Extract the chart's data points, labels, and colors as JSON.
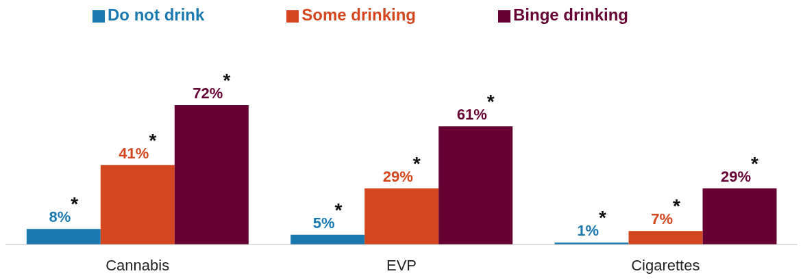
{
  "chart_data": {
    "type": "bar",
    "categories": [
      "Cannabis",
      "EVP",
      "Cigarettes"
    ],
    "series": [
      {
        "name": "Do not drink",
        "color": "#1a7ab0",
        "values": [
          8,
          5,
          1
        ],
        "value_labels": [
          "8%$^{*}$",
          "5%$^{*}$",
          "1%$^{*}$"
        ]
      },
      {
        "name": "Some drinking",
        "color": "#d4471e",
        "values": [
          41,
          29,
          7
        ],
        "value_labels": [
          "41%$^{*}$",
          "29%$^{*}$",
          "7%$^{*}$"
        ]
      },
      {
        "name": "Binge drinking",
        "color": "#660033",
        "values": [
          72,
          61,
          29
        ],
        "value_labels": [
          "72%$^{*}$",
          "61%$^{*}$",
          "29%$^{*}$"
        ]
      }
    ],
    "legend": "top",
    "grid": false
  }
}
